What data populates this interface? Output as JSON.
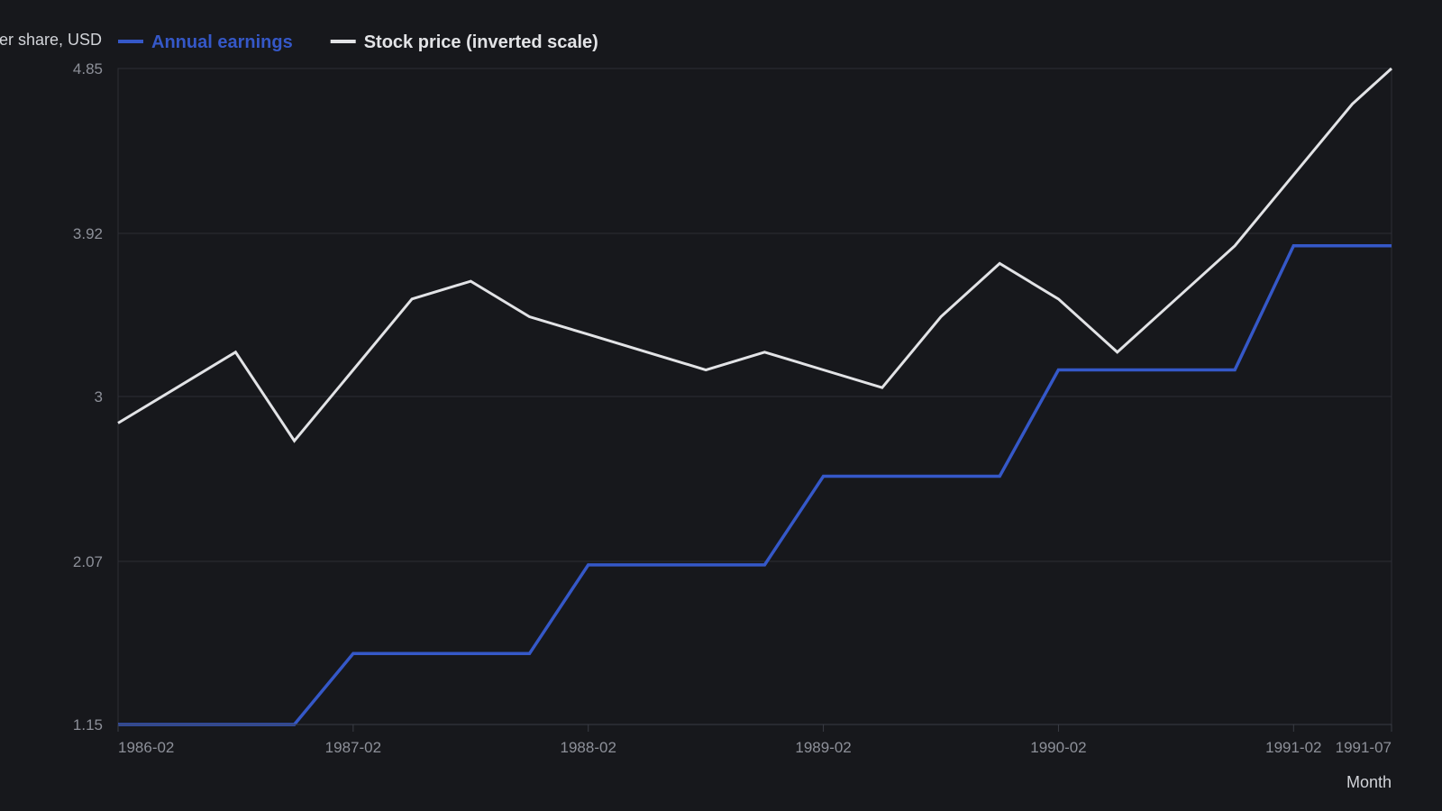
{
  "chart_data": {
    "type": "line",
    "ylabel": "Per share, USD",
    "xlabel": "Month",
    "y_ticks": [
      "1.15",
      "2.07",
      "3",
      "3.92",
      "4.85"
    ],
    "ylim": [
      1.15,
      4.85
    ],
    "x_ticks": [
      "1986-02",
      "1987-02",
      "1988-02",
      "1989-02",
      "1990-02",
      "1991-02",
      "1991-07"
    ],
    "x_range": [
      "1986-02",
      "1991-07"
    ],
    "grid": true,
    "legend_position": "top-left",
    "series": [
      {
        "name": "Annual earnings",
        "color": "#3558c8",
        "step": true,
        "points": [
          [
            "1986-02",
            1.15
          ],
          [
            "1986-05",
            1.15
          ],
          [
            "1986-08",
            1.15
          ],
          [
            "1986-11",
            1.15
          ],
          [
            "1987-02",
            1.55
          ],
          [
            "1987-05",
            1.55
          ],
          [
            "1987-08",
            1.55
          ],
          [
            "1987-11",
            1.55
          ],
          [
            "1988-02",
            2.05
          ],
          [
            "1988-05",
            2.05
          ],
          [
            "1988-08",
            2.05
          ],
          [
            "1988-11",
            2.05
          ],
          [
            "1989-02",
            2.55
          ],
          [
            "1989-05",
            2.55
          ],
          [
            "1989-08",
            2.55
          ],
          [
            "1989-11",
            2.55
          ],
          [
            "1990-02",
            3.15
          ],
          [
            "1990-05",
            3.15
          ],
          [
            "1990-08",
            3.15
          ],
          [
            "1990-11",
            3.15
          ],
          [
            "1991-02",
            3.85
          ],
          [
            "1991-05",
            3.85
          ],
          [
            "1991-07",
            3.85
          ]
        ]
      },
      {
        "name": "Stock price (inverted scale)",
        "color": "#e2e3e6",
        "step": false,
        "points": [
          [
            "1986-02",
            2.85
          ],
          [
            "1986-05",
            3.05
          ],
          [
            "1986-08",
            3.25
          ],
          [
            "1986-11",
            2.75
          ],
          [
            "1987-02",
            3.15
          ],
          [
            "1987-05",
            3.55
          ],
          [
            "1987-08",
            3.65
          ],
          [
            "1987-11",
            3.45
          ],
          [
            "1988-02",
            3.35
          ],
          [
            "1988-05",
            3.25
          ],
          [
            "1988-08",
            3.15
          ],
          [
            "1988-11",
            3.25
          ],
          [
            "1989-02",
            3.15
          ],
          [
            "1989-05",
            3.05
          ],
          [
            "1989-08",
            3.45
          ],
          [
            "1989-11",
            3.75
          ],
          [
            "1990-02",
            3.55
          ],
          [
            "1990-05",
            3.25
          ],
          [
            "1990-08",
            3.55
          ],
          [
            "1990-11",
            3.85
          ],
          [
            "1991-02",
            4.25
          ],
          [
            "1991-05",
            4.65
          ],
          [
            "1991-07",
            4.85
          ]
        ]
      }
    ]
  }
}
